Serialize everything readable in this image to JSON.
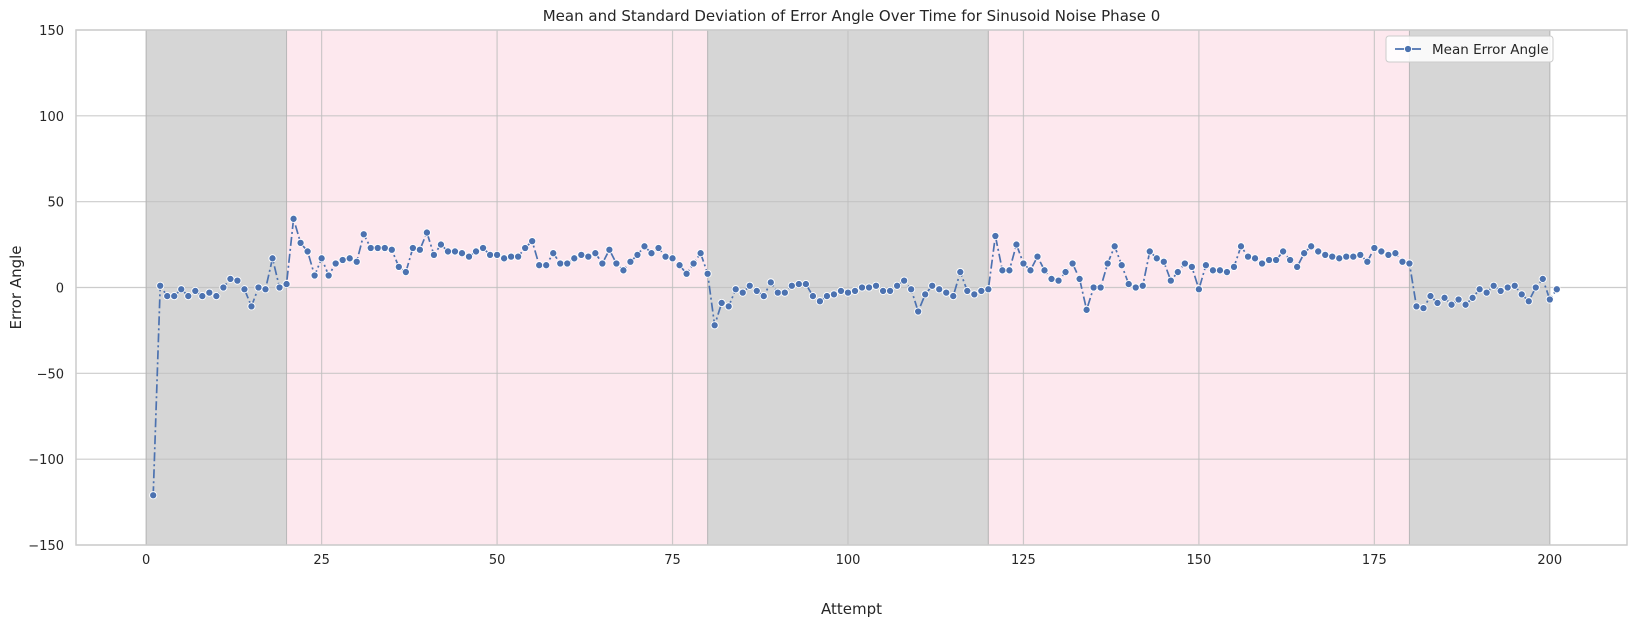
{
  "chart_data": {
    "type": "line",
    "title": "Mean and Standard Deviation of Error Angle Over Time for Sinusoid Noise Phase 0",
    "xlabel": "Attempt",
    "ylabel": "Error Angle",
    "xlim": [
      -10,
      211
    ],
    "ylim": [
      -150,
      150
    ],
    "xticks": [
      0,
      25,
      50,
      75,
      100,
      125,
      150,
      175,
      200
    ],
    "yticks": [
      -150,
      -100,
      -50,
      0,
      50,
      100,
      150
    ],
    "xtick_labels": [
      "0",
      "25",
      "50",
      "75",
      "100",
      "125",
      "150",
      "175",
      "200"
    ],
    "ytick_labels": [
      "−150",
      "−100",
      "−50",
      "0",
      "50",
      "100",
      "150"
    ],
    "grid": true,
    "legend_position": "top-right",
    "shaded_regions": [
      {
        "x0": 0,
        "x1": 20,
        "color": "#d6d6d6"
      },
      {
        "x0": 20,
        "x1": 80,
        "color": "#fde8ee"
      },
      {
        "x0": 80,
        "x1": 120,
        "color": "#d6d6d6"
      },
      {
        "x0": 120,
        "x1": 180,
        "color": "#fde8ee"
      },
      {
        "x0": 180,
        "x1": 200,
        "color": "#d6d6d6"
      }
    ],
    "series": [
      {
        "name": "Mean Error Angle",
        "color": "#4c72b0",
        "line_style": "dashdot",
        "marker": "circle",
        "x": [
          1,
          2,
          3,
          4,
          5,
          6,
          7,
          8,
          9,
          10,
          11,
          12,
          13,
          14,
          15,
          16,
          17,
          18,
          19,
          20,
          21,
          22,
          23,
          24,
          25,
          26,
          27,
          28,
          29,
          30,
          31,
          32,
          33,
          34,
          35,
          36,
          37,
          38,
          39,
          40,
          41,
          42,
          43,
          44,
          45,
          46,
          47,
          48,
          49,
          50,
          51,
          52,
          53,
          54,
          55,
          56,
          57,
          58,
          59,
          60,
          61,
          62,
          63,
          64,
          65,
          66,
          67,
          68,
          69,
          70,
          71,
          72,
          73,
          74,
          75,
          76,
          77,
          78,
          79,
          80,
          81,
          82,
          83,
          84,
          85,
          86,
          87,
          88,
          89,
          90,
          91,
          92,
          93,
          94,
          95,
          96,
          97,
          98,
          99,
          100,
          101,
          102,
          103,
          104,
          105,
          106,
          107,
          108,
          109,
          110,
          111,
          112,
          113,
          114,
          115,
          116,
          117,
          118,
          119,
          120,
          121,
          122,
          123,
          124,
          125,
          126,
          127,
          128,
          129,
          130,
          131,
          132,
          133,
          134,
          135,
          136,
          137,
          138,
          139,
          140,
          141,
          142,
          143,
          144,
          145,
          146,
          147,
          148,
          149,
          150,
          151,
          152,
          153,
          154,
          155,
          156,
          157,
          158,
          159,
          160,
          161,
          162,
          163,
          164,
          165,
          166,
          167,
          168,
          169,
          170,
          171,
          172,
          173,
          174,
          175,
          176,
          177,
          178,
          179,
          180,
          181,
          182,
          183,
          184,
          185,
          186,
          187,
          188,
          189,
          190,
          191,
          192,
          193,
          194,
          195,
          196,
          197,
          198,
          199,
          200,
          201
        ],
        "values": [
          -121,
          1,
          -5,
          -5,
          -1,
          -5,
          -2,
          -5,
          -3,
          -5,
          0,
          5,
          4,
          -1,
          -11,
          0,
          -1,
          17,
          0,
          2,
          40,
          26,
          21,
          7,
          17,
          7,
          14,
          16,
          17,
          15,
          31,
          23,
          23,
          23,
          22,
          12,
          9,
          23,
          22,
          32,
          19,
          25,
          21,
          21,
          20,
          18,
          21,
          23,
          19,
          19,
          17,
          18,
          18,
          23,
          27,
          13,
          13,
          20,
          14,
          14,
          17,
          19,
          18,
          20,
          14,
          22,
          14,
          10,
          15,
          19,
          24,
          20,
          23,
          18,
          17,
          13,
          8,
          14,
          20,
          8,
          -22,
          -9,
          -11,
          -1,
          -3,
          1,
          -2,
          -5,
          3,
          -3,
          -3,
          1,
          2,
          2,
          -5,
          -8,
          -5,
          -4,
          -2,
          -3,
          -2,
          0,
          0,
          1,
          -2,
          -2,
          1,
          4,
          -1,
          -14,
          -4,
          1,
          -1,
          -3,
          -5,
          9,
          -2,
          -4,
          -2,
          -1,
          30,
          10,
          10,
          25,
          14,
          10,
          18,
          10,
          5,
          4,
          9,
          14,
          5,
          -13,
          0,
          0,
          14,
          24,
          13,
          2,
          0,
          1,
          21,
          17,
          15,
          4,
          9,
          14,
          12,
          -1,
          13,
          10,
          10,
          9,
          12,
          24,
          18,
          17,
          14,
          16,
          16,
          21,
          16,
          12,
          20,
          24,
          21,
          19,
          18,
          17,
          18,
          18,
          19,
          15,
          23,
          21,
          19,
          20,
          15,
          14,
          -11,
          -12,
          -5,
          -9,
          -6,
          -10,
          -7,
          -10,
          -6,
          -1,
          -3,
          1,
          -2,
          0,
          1,
          -4,
          -8,
          0,
          5,
          -7,
          -1
        ]
      }
    ]
  }
}
